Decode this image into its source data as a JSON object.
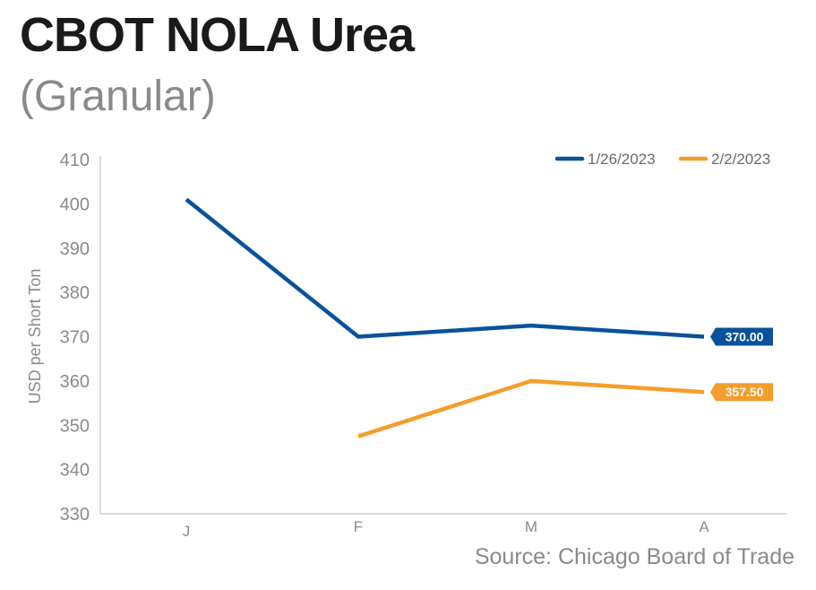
{
  "header": {
    "title": "CBOT NOLA Urea",
    "subtitle": "(Granular)"
  },
  "footer": {
    "source": "Source: Chicago Board of Trade"
  },
  "chart_data": {
    "type": "line",
    "title": "CBOT NOLA Urea",
    "subtitle": "(Granular)",
    "xlabel": "",
    "ylabel": "USD per Short Ton",
    "categories": [
      "J",
      "F",
      "M",
      "A"
    ],
    "ylim": [
      330,
      410
    ],
    "yticks": [
      330,
      340,
      350,
      360,
      370,
      380,
      390,
      400,
      410
    ],
    "grid": false,
    "legend_position": "top-right",
    "series": [
      {
        "name": "1/26/2023",
        "color": "#0a519c",
        "values": [
          401,
          370,
          372.5,
          370
        ],
        "end_label": "370.00"
      },
      {
        "name": "2/2/2023",
        "color": "#f59d2a",
        "values": [
          null,
          347.5,
          360,
          357.5
        ],
        "end_label": "357.50"
      }
    ]
  }
}
